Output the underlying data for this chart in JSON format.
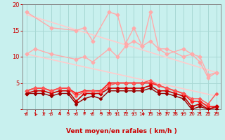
{
  "background_color": "#c8f0ee",
  "grid_color": "#a8d8d4",
  "xlabel": "Vent moyen/en rafales ( km/h )",
  "xlim": [
    -0.5,
    23.5
  ],
  "ylim": [
    0,
    20
  ],
  "xticks": [
    0,
    1,
    2,
    3,
    4,
    5,
    6,
    7,
    8,
    9,
    10,
    11,
    12,
    13,
    14,
    15,
    16,
    17,
    18,
    19,
    20,
    21,
    22,
    23
  ],
  "yticks": [
    0,
    5,
    10,
    15,
    20
  ],
  "series": [
    {
      "x": [
        0,
        3,
        6,
        7,
        8,
        10,
        11,
        12,
        13,
        14,
        15,
        16,
        17,
        19,
        20,
        21,
        22,
        23
      ],
      "y": [
        18.5,
        15.5,
        15.0,
        15.5,
        13.0,
        18.5,
        18.0,
        12.5,
        15.5,
        12.0,
        18.5,
        11.5,
        11.5,
        10.0,
        10.5,
        10.0,
        6.5,
        7.0
      ],
      "color": "#ffaaaa",
      "lw": 1.0,
      "marker": "D",
      "ms": 2.5
    },
    {
      "x": [
        0,
        1,
        3,
        6,
        7,
        8,
        10,
        11,
        12,
        13,
        14,
        15,
        16,
        17,
        19,
        20,
        21,
        22,
        23
      ],
      "y": [
        10.5,
        11.5,
        10.5,
        9.5,
        10.0,
        9.0,
        11.5,
        10.0,
        12.0,
        13.0,
        12.0,
        13.0,
        11.5,
        10.5,
        11.5,
        10.5,
        9.0,
        6.0,
        7.0
      ],
      "color": "#ffaaaa",
      "lw": 1.0,
      "marker": "D",
      "ms": 2.5
    },
    {
      "x": [
        0,
        23
      ],
      "y": [
        18.0,
        7.0
      ],
      "color": "#ffcccc",
      "lw": 1.2,
      "marker": null,
      "ms": 0
    },
    {
      "x": [
        0,
        23
      ],
      "y": [
        10.5,
        2.5
      ],
      "color": "#ffcccc",
      "lw": 1.2,
      "marker": null,
      "ms": 0
    },
    {
      "x": [
        0,
        1,
        2,
        3,
        4,
        5,
        6,
        7,
        8,
        9,
        10,
        11,
        12,
        13,
        14,
        15,
        16,
        17,
        18,
        19,
        20,
        21,
        22,
        23
      ],
      "y": [
        3.5,
        4.0,
        4.0,
        3.5,
        4.0,
        4.0,
        3.0,
        3.5,
        3.5,
        3.5,
        5.0,
        5.0,
        5.0,
        5.0,
        5.0,
        5.0,
        4.5,
        4.0,
        3.5,
        3.0,
        1.5,
        1.5,
        0.5,
        0.5
      ],
      "color": "#ff2020",
      "lw": 1.3,
      "marker": "D",
      "ms": 2.5
    },
    {
      "x": [
        0,
        1,
        2,
        3,
        4,
        5,
        6,
        7,
        8,
        9,
        10,
        11,
        12,
        13,
        14,
        15,
        16,
        17,
        18,
        19,
        20,
        21,
        22,
        23
      ],
      "y": [
        3.0,
        3.5,
        3.5,
        3.0,
        3.5,
        3.5,
        1.5,
        3.0,
        3.0,
        3.0,
        4.0,
        4.0,
        4.0,
        4.0,
        4.0,
        4.5,
        3.5,
        3.5,
        3.0,
        2.5,
        0.5,
        1.0,
        0.0,
        0.5
      ],
      "color": "#cc0000",
      "lw": 1.2,
      "marker": "D",
      "ms": 2.5
    },
    {
      "x": [
        0,
        1,
        2,
        3,
        4,
        5,
        6,
        7,
        8,
        9,
        10,
        11,
        12,
        13,
        14,
        15,
        16,
        17,
        18,
        19,
        20,
        21,
        22,
        23
      ],
      "y": [
        3.5,
        4.0,
        4.0,
        3.5,
        4.0,
        4.0,
        2.5,
        3.3,
        3.5,
        3.3,
        4.5,
        5.0,
        5.0,
        5.0,
        5.0,
        5.5,
        4.5,
        4.0,
        3.5,
        3.0,
        2.0,
        2.0,
        1.0,
        3.0
      ],
      "color": "#ff5555",
      "lw": 1.0,
      "marker": "D",
      "ms": 2.0
    },
    {
      "x": [
        0,
        1,
        2,
        3,
        4,
        5,
        6,
        7,
        8,
        9,
        10,
        11,
        12,
        13,
        14,
        15,
        16,
        17,
        18,
        19,
        20,
        21,
        22,
        23
      ],
      "y": [
        3.0,
        3.0,
        3.0,
        2.5,
        3.0,
        3.0,
        1.0,
        2.0,
        2.5,
        2.0,
        3.5,
        3.5,
        3.5,
        3.5,
        3.5,
        4.0,
        3.0,
        3.0,
        2.5,
        2.0,
        0.0,
        0.5,
        0.0,
        0.0
      ],
      "color": "#990000",
      "lw": 1.0,
      "marker": "D",
      "ms": 2.0
    }
  ],
  "arrows": {
    "angles": [
      45,
      330,
      300,
      45,
      0,
      0,
      45,
      0,
      45,
      0,
      0,
      45,
      0,
      45,
      315,
      0,
      315,
      0,
      0,
      45,
      0,
      0,
      0,
      0
    ],
    "color": "#cc0000",
    "y_data": -1.3
  },
  "xlabel_color": "#cc0000",
  "tick_color": "#cc0000",
  "axis_color": "#888888"
}
